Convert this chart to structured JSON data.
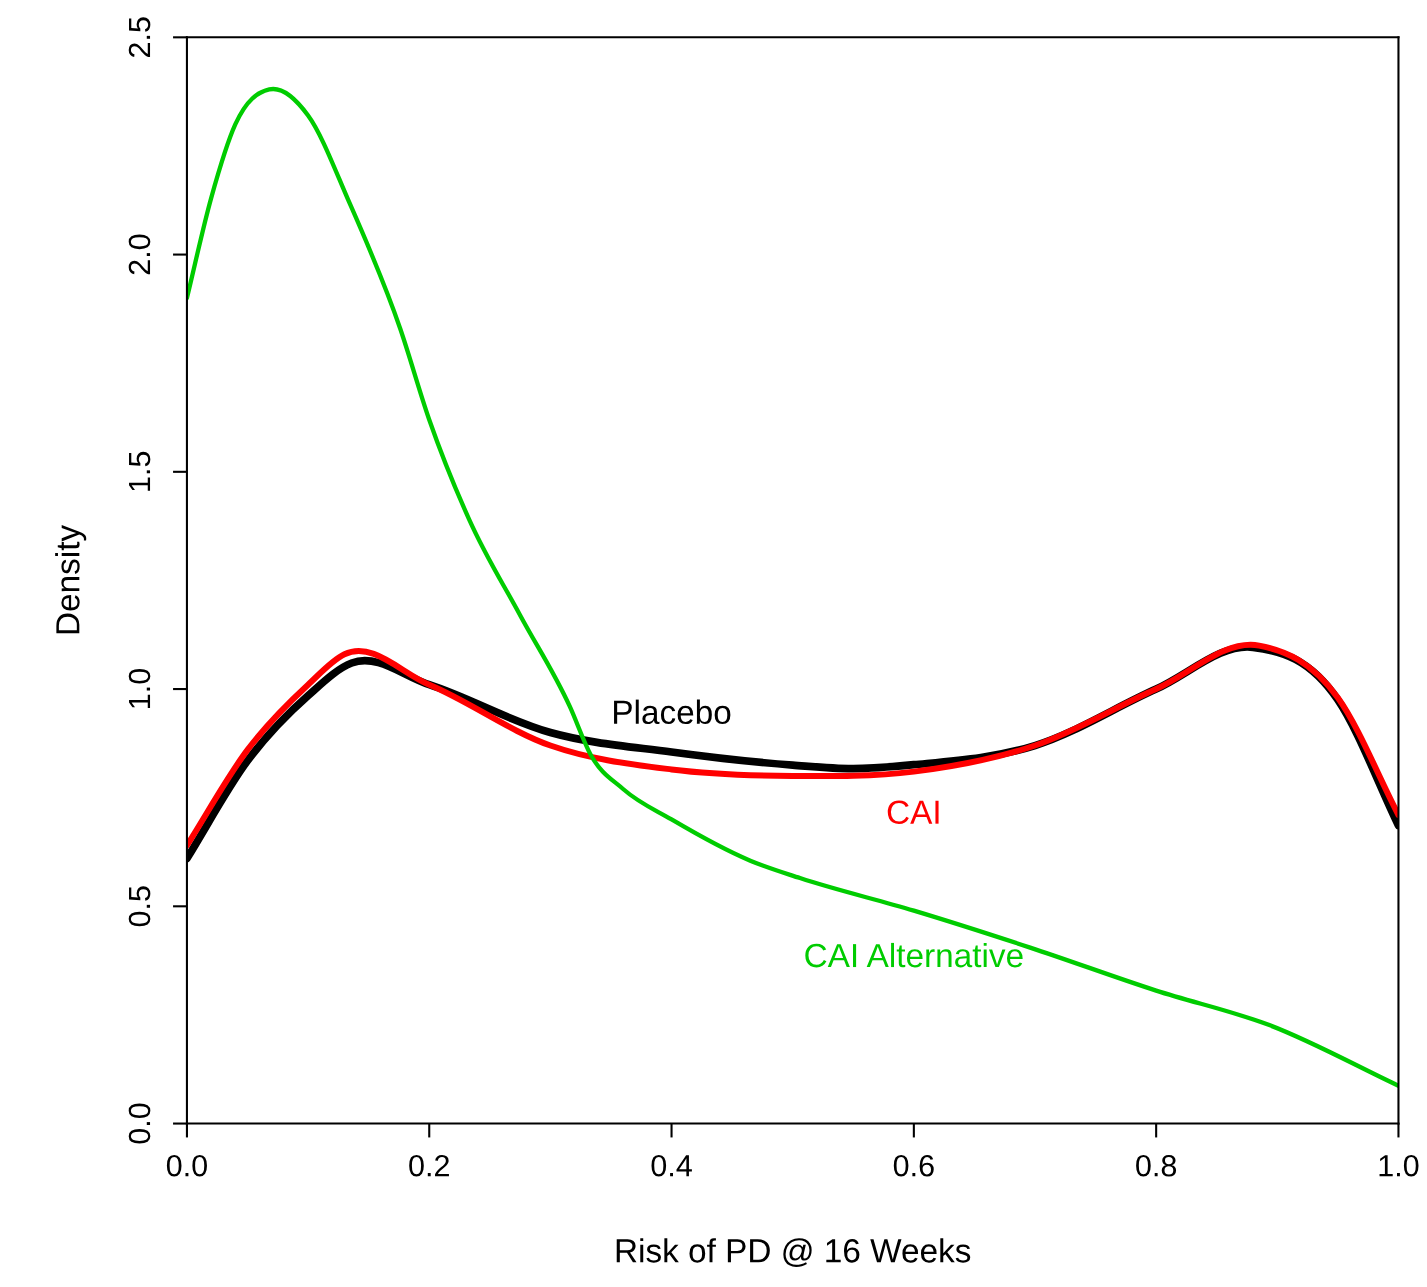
{
  "chart_data": {
    "type": "line",
    "xlabel": "Risk of PD @ 16 Weeks",
    "ylabel": "Density",
    "xlim": [
      0,
      1
    ],
    "ylim": [
      0,
      2.5
    ],
    "xticks": [
      {
        "value": 0,
        "label": "0.0"
      },
      0.2,
      0.4,
      0.6,
      0.8,
      {
        "value": 1,
        "label": "1.0"
      }
    ],
    "yticks": [
      {
        "value": 0,
        "label": "0.0"
      },
      0.5,
      {
        "value": 1,
        "label": "1.0"
      },
      1.5,
      {
        "value": 2,
        "label": "2.0"
      },
      2.5
    ],
    "grid": false,
    "legend": false,
    "line_style": "solid",
    "marker": "none",
    "series": [
      {
        "name": "Placebo",
        "color": "#000000",
        "x": [
          0,
          0.05,
          0.1,
          0.136,
          0.2,
          0.3,
          0.4,
          0.5,
          0.55,
          0.6,
          0.7,
          0.8,
          0.88,
          0.95,
          1.0
        ],
        "values": [
          0.61,
          0.835,
          0.985,
          1.06,
          1.01,
          0.9,
          0.855,
          0.825,
          0.817,
          0.826,
          0.87,
          1.0,
          1.096,
          0.975,
          0.686
        ]
      },
      {
        "name": "CAI",
        "color": "#ff0000",
        "x": [
          0,
          0.05,
          0.1,
          0.13,
          0.2,
          0.3,
          0.4,
          0.5,
          0.6,
          0.7,
          0.8,
          0.885,
          0.95,
          1.0
        ],
        "values": [
          0.64,
          0.86,
          1.01,
          1.08,
          1.01,
          0.87,
          0.815,
          0.8,
          0.81,
          0.87,
          1.0,
          1.1,
          0.98,
          0.71
        ]
      },
      {
        "name": "CAI Alternative",
        "color": "#00cc00",
        "x": [
          0,
          0.02,
          0.04,
          0.068,
          0.1,
          0.134,
          0.176,
          0.2,
          0.233,
          0.275,
          0.316,
          0.333,
          0.36,
          0.4,
          0.465,
          0.506,
          0.6,
          0.696,
          0.8,
          0.894,
          1.0
        ],
        "values": [
          1.9,
          2.13,
          2.3,
          2.38,
          2.32,
          2.12,
          1.83,
          1.62,
          1.39,
          1.17,
          0.96,
          0.85,
          0.77,
          0.7,
          0.605,
          0.565,
          0.49,
          0.405,
          0.306,
          0.226,
          0.087
        ]
      }
    ]
  }
}
